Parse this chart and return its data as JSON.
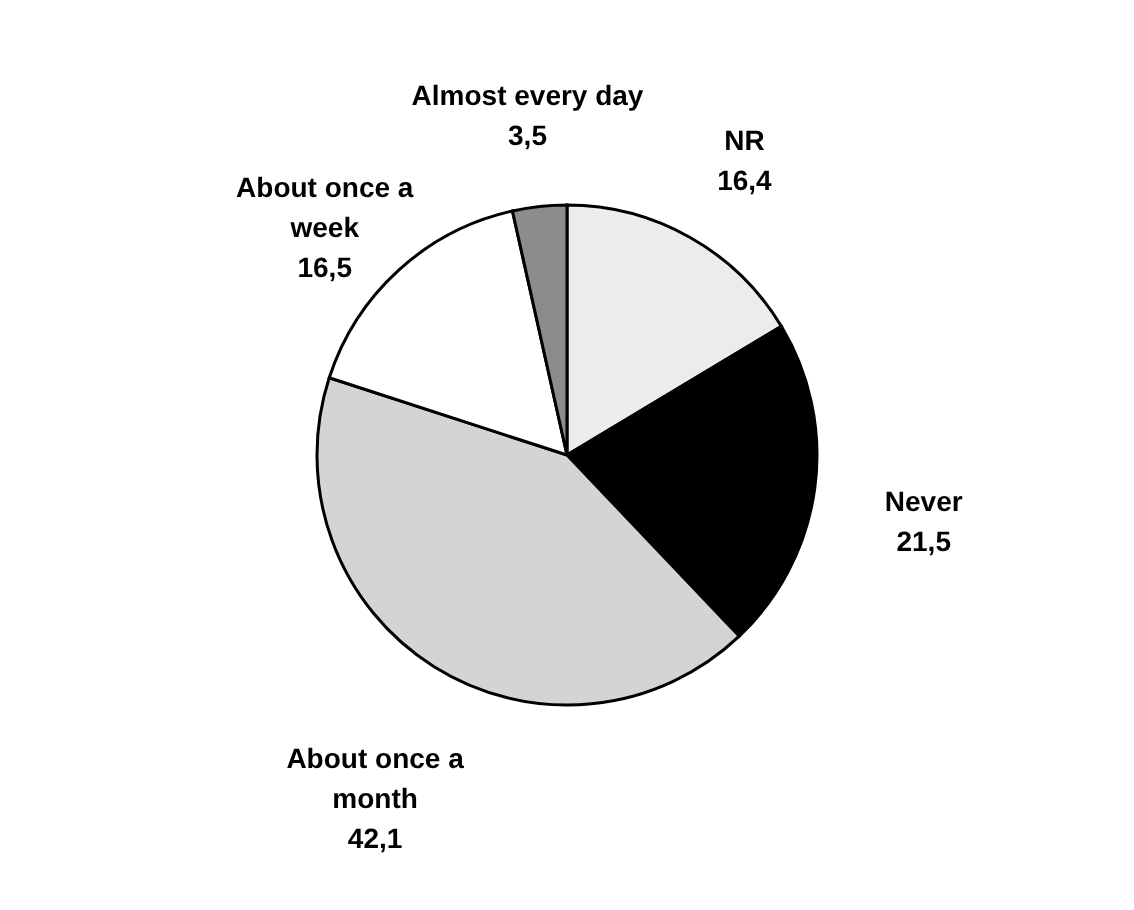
{
  "chart_data": {
    "type": "pie",
    "categories": [
      "NR",
      "Never",
      "About once a month",
      "About once a week",
      "Almost every day"
    ],
    "values": [
      16.4,
      21.5,
      42.1,
      16.5,
      3.5
    ],
    "value_labels": [
      "16,4",
      "21,5",
      "42,1",
      "16,5",
      "3,5"
    ],
    "colors": [
      "#ececec",
      "#000000",
      "#d4d4d4",
      "#ffffff",
      "#8c8c8c"
    ],
    "legend": false
  }
}
